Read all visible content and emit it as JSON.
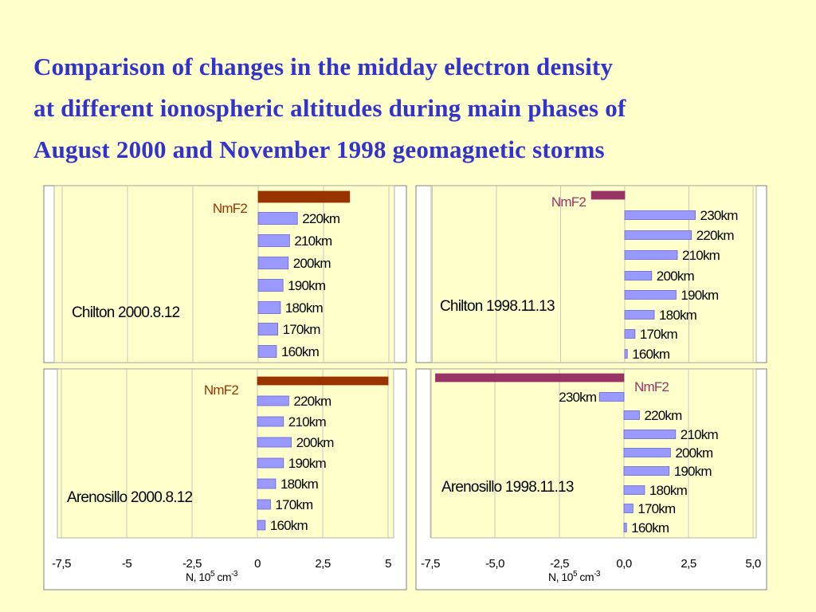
{
  "title": {
    "line1": "Comparison of changes in the midday  electron density",
    "line2": "at different ionospheric altitudes during main phases of",
    "line3": "August 2000 and November 1998 geomagnetic storms"
  },
  "colors": {
    "background": "#ffffcc",
    "title": "#3333cc",
    "nmf2_2000": "#993300",
    "nmf2_1998": "#993366",
    "bar": "#9999ff",
    "bar_edge": "#6666cc",
    "nmf2_label_2000": "#993300",
    "nmf2_label_1998": "#993366",
    "grid": "#c8c8b4"
  },
  "chart_data": [
    {
      "type": "bar",
      "orientation": "horizontal",
      "label": "Chilton 2000.8.12",
      "categories": [
        "NmF2",
        "220km",
        "210km",
        "200km",
        "190km",
        "180km",
        "170km",
        "160km"
      ],
      "values": [
        3.5,
        1.5,
        1.2,
        1.15,
        0.95,
        0.85,
        0.75,
        0.7
      ],
      "xlim": [
        -7.5,
        5
      ],
      "xticks": [
        "-7,5",
        "-5",
        "-2,5",
        "0",
        "2,5",
        "5"
      ]
    },
    {
      "type": "bar",
      "orientation": "horizontal",
      "label": "Chilton 1998.11.13",
      "categories": [
        "NmF2",
        "230km",
        "220km",
        "210km",
        "200km",
        "190km",
        "180km",
        "170km",
        "160km"
      ],
      "values": [
        -1.3,
        2.75,
        2.6,
        2.05,
        1.05,
        2.0,
        1.15,
        0.4,
        0.1
      ],
      "xlim": [
        -7.5,
        5
      ],
      "xticks": [
        "-7,5",
        "-5,0",
        "-2,5",
        "0,0",
        "2,5",
        "5,0"
      ]
    },
    {
      "type": "bar",
      "orientation": "horizontal",
      "label": "Arenosillo 2000.8.12",
      "categories": [
        "NmF2",
        "220km",
        "210km",
        "200km",
        "190km",
        "180km",
        "170km",
        "160km"
      ],
      "values": [
        5.0,
        1.2,
        1.0,
        1.3,
        1.0,
        0.7,
        0.5,
        0.3
      ],
      "xlim": [
        -7.5,
        5
      ],
      "xticks": [
        "-7,5",
        "-5",
        "-2,5",
        "0",
        "2,5",
        "5"
      ],
      "xlabel": "N, 10",
      "xlabel_unit": "cm",
      "xlabel_exp1": "5",
      "xlabel_exp2": "-3"
    },
    {
      "type": "bar",
      "orientation": "horizontal",
      "label": "Arenosillo 1998.11.13",
      "categories": [
        "NmF2",
        "230km",
        "220km",
        "210km",
        "200km",
        "190km",
        "180km",
        "170km",
        "160km"
      ],
      "values": [
        -7.3,
        -0.95,
        0.6,
        2.0,
        1.8,
        1.75,
        0.8,
        0.35,
        0.1
      ],
      "xlim": [
        -7.5,
        5
      ],
      "xticks": [
        "-7,5",
        "-5,0",
        "-2,5",
        "0,0",
        "2,5",
        "5,0"
      ],
      "xlabel": "N, 10",
      "xlabel_unit": "cm",
      "xlabel_exp1": "5",
      "xlabel_exp2": "-3"
    }
  ]
}
